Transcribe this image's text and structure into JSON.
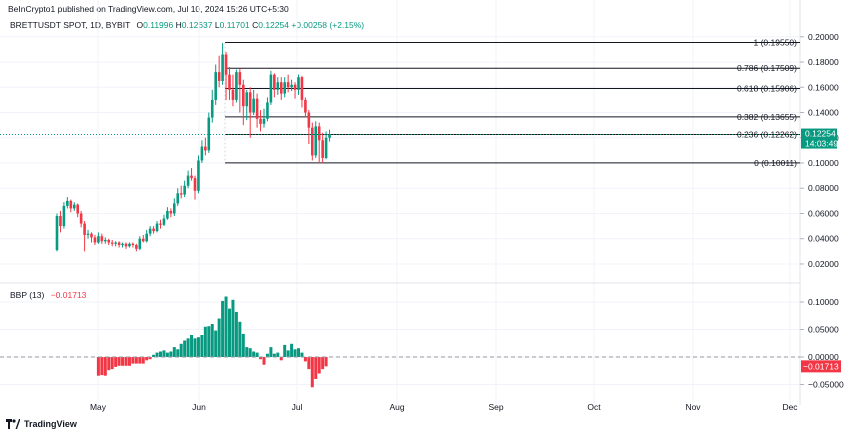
{
  "header": {
    "published": "BeInCrypto1 published on TradingView.com, Jul 10, 2024 15:26 UTC+5:30"
  },
  "main_legend": {
    "symbol": "BRETTUSDT SPOT, 1D, BYBIT",
    "o_label": "O",
    "o_value": "0.11996",
    "h_label": "H",
    "h_value": "0.12637",
    "l_label": "L",
    "l_value": "0.11701",
    "c_label": "C",
    "c_value": "0.12254",
    "change": "+0.00258 (+2.15%)"
  },
  "bbp_legend": {
    "name": "BBP (13)",
    "value": "−0.01713"
  },
  "price_badge": {
    "price": "0.12254",
    "countdown": "14:03:49"
  },
  "bbp_badge": {
    "value": "−0.01713"
  },
  "footer": {
    "brand": "TradingView"
  },
  "colors": {
    "up": "#089981",
    "down": "#f23645",
    "text": "#131722",
    "grid": "#f0f3fa"
  },
  "chart_data": [
    {
      "type": "candlestick",
      "title": "BRETTUSDT SPOT, 1D, BYBIT",
      "ylim": [
        0.0,
        0.21
      ],
      "y_ticks": [
        "0.20000",
        "0.18000",
        "0.16000",
        "0.14000",
        "0.12000",
        "0.10000",
        "0.08000",
        "0.06000",
        "0.04000",
        "0.02000"
      ],
      "y_tick_values": [
        0.2,
        0.18,
        0.16,
        0.14,
        0.12,
        0.1,
        0.08,
        0.06,
        0.04,
        0.02
      ],
      "x_ticks": [
        "May",
        "Jun",
        "Jul",
        "Aug",
        "Sep",
        "Oct",
        "Nov",
        "Dec"
      ],
      "last_price": 0.12254,
      "fibonacci": [
        {
          "level": "1",
          "price": 0.1955,
          "label": "1 (0.19550)"
        },
        {
          "level": "0.786",
          "price": 0.17509,
          "label": "0.786 (0.17509)"
        },
        {
          "level": "0.618",
          "price": 0.15906,
          "label": "0.618 (0.15906)"
        },
        {
          "level": "0.382",
          "price": 0.13655,
          "label": "0.382 (0.13655)"
        },
        {
          "level": "0.236",
          "price": 0.12262,
          "label": "0.236 (0.12262)"
        },
        {
          "level": "0",
          "price": 0.10011,
          "label": "0 (0.10011)"
        }
      ],
      "candles": [
        [
          0.031,
          0.058,
          0.06,
          0.03
        ],
        [
          0.058,
          0.05,
          0.062,
          0.045
        ],
        [
          0.05,
          0.066,
          0.069,
          0.048
        ],
        [
          0.066,
          0.07,
          0.073,
          0.064
        ],
        [
          0.07,
          0.064,
          0.071,
          0.061
        ],
        [
          0.064,
          0.067,
          0.069,
          0.062
        ],
        [
          0.067,
          0.06,
          0.068,
          0.057
        ],
        [
          0.06,
          0.052,
          0.062,
          0.049
        ],
        [
          0.052,
          0.043,
          0.054,
          0.03
        ],
        [
          0.043,
          0.044,
          0.047,
          0.04
        ],
        [
          0.044,
          0.041,
          0.045,
          0.037
        ],
        [
          0.041,
          0.037,
          0.043,
          0.035
        ],
        [
          0.037,
          0.042,
          0.045,
          0.036
        ],
        [
          0.042,
          0.038,
          0.044,
          0.036
        ],
        [
          0.038,
          0.039,
          0.041,
          0.036
        ],
        [
          0.039,
          0.037,
          0.04,
          0.035
        ],
        [
          0.037,
          0.036,
          0.039,
          0.034
        ],
        [
          0.036,
          0.037,
          0.038,
          0.034
        ],
        [
          0.037,
          0.035,
          0.038,
          0.033
        ],
        [
          0.035,
          0.036,
          0.037,
          0.033
        ],
        [
          0.036,
          0.034,
          0.037,
          0.032
        ],
        [
          0.034,
          0.036,
          0.037,
          0.033
        ],
        [
          0.036,
          0.035,
          0.037,
          0.033
        ],
        [
          0.035,
          0.032,
          0.036,
          0.03
        ],
        [
          0.032,
          0.04,
          0.042,
          0.031
        ],
        [
          0.04,
          0.038,
          0.043,
          0.037
        ],
        [
          0.038,
          0.044,
          0.047,
          0.037
        ],
        [
          0.044,
          0.048,
          0.05,
          0.042
        ],
        [
          0.048,
          0.046,
          0.05,
          0.044
        ],
        [
          0.046,
          0.052,
          0.054,
          0.045
        ],
        [
          0.052,
          0.051,
          0.055,
          0.048
        ],
        [
          0.051,
          0.056,
          0.059,
          0.05
        ],
        [
          0.056,
          0.062,
          0.065,
          0.055
        ],
        [
          0.062,
          0.06,
          0.064,
          0.057
        ],
        [
          0.06,
          0.068,
          0.072,
          0.058
        ],
        [
          0.068,
          0.076,
          0.08,
          0.066
        ],
        [
          0.076,
          0.075,
          0.082,
          0.072
        ],
        [
          0.075,
          0.082,
          0.086,
          0.073
        ],
        [
          0.082,
          0.09,
          0.094,
          0.08
        ],
        [
          0.09,
          0.088,
          0.096,
          0.086
        ],
        [
          0.088,
          0.078,
          0.09,
          0.071
        ],
        [
          0.078,
          0.102,
          0.106,
          0.076
        ],
        [
          0.102,
          0.113,
          0.118,
          0.1
        ],
        [
          0.113,
          0.11,
          0.12,
          0.106
        ],
        [
          0.11,
          0.136,
          0.14,
          0.108
        ],
        [
          0.136,
          0.15,
          0.158,
          0.132
        ],
        [
          0.15,
          0.172,
          0.178,
          0.146
        ],
        [
          0.172,
          0.165,
          0.185,
          0.16
        ],
        [
          0.165,
          0.186,
          0.195,
          0.162
        ],
        [
          0.186,
          0.17,
          0.188,
          0.15
        ],
        [
          0.17,
          0.158,
          0.176,
          0.15
        ],
        [
          0.158,
          0.15,
          0.17,
          0.145
        ],
        [
          0.15,
          0.172,
          0.174,
          0.148
        ],
        [
          0.172,
          0.162,
          0.175,
          0.14
        ],
        [
          0.162,
          0.145,
          0.166,
          0.13
        ],
        [
          0.145,
          0.156,
          0.158,
          0.134
        ],
        [
          0.156,
          0.14,
          0.16,
          0.12
        ],
        [
          0.14,
          0.151,
          0.158,
          0.138
        ],
        [
          0.151,
          0.135,
          0.155,
          0.128
        ],
        [
          0.135,
          0.131,
          0.142,
          0.125
        ],
        [
          0.131,
          0.135,
          0.143,
          0.128
        ],
        [
          0.135,
          0.148,
          0.152,
          0.133
        ],
        [
          0.148,
          0.17,
          0.173,
          0.146
        ],
        [
          0.17,
          0.158,
          0.171,
          0.152
        ],
        [
          0.158,
          0.164,
          0.168,
          0.154
        ],
        [
          0.164,
          0.155,
          0.168,
          0.15
        ],
        [
          0.155,
          0.164,
          0.168,
          0.152
        ],
        [
          0.164,
          0.16,
          0.17,
          0.156
        ],
        [
          0.16,
          0.162,
          0.166,
          0.157
        ],
        [
          0.162,
          0.158,
          0.164,
          0.151
        ],
        [
          0.158,
          0.168,
          0.17,
          0.154
        ],
        [
          0.168,
          0.15,
          0.169,
          0.144
        ],
        [
          0.15,
          0.14,
          0.152,
          0.136
        ],
        [
          0.14,
          0.128,
          0.142,
          0.115
        ],
        [
          0.128,
          0.106,
          0.132,
          0.102
        ],
        [
          0.106,
          0.129,
          0.133,
          0.104
        ],
        [
          0.129,
          0.118,
          0.132,
          0.1
        ],
        [
          0.118,
          0.104,
          0.124,
          0.1
        ],
        [
          0.104,
          0.12,
          0.125,
          0.103
        ],
        [
          0.11996,
          0.12254,
          0.12637,
          0.11701
        ]
      ]
    },
    {
      "type": "bar",
      "title": "BBP (13)",
      "ylim": [
        -0.065,
        0.115
      ],
      "y_ticks": [
        "0.10000",
        "0.05000",
        "0.00000",
        "−0.05000"
      ],
      "y_tick_values": [
        0.1,
        0.05,
        0.0,
        -0.05
      ],
      "values": [
        null,
        null,
        null,
        null,
        null,
        null,
        null,
        null,
        null,
        null,
        null,
        null,
        -0.034,
        -0.033,
        -0.034,
        -0.024,
        -0.022,
        -0.018,
        -0.016,
        -0.016,
        -0.016,
        -0.016,
        -0.012,
        -0.012,
        -0.012,
        -0.012,
        -0.006,
        -0.004,
        0.004,
        0.008,
        0.01,
        0.012,
        0.008,
        0.01,
        0.018,
        0.014,
        0.024,
        0.03,
        0.034,
        0.04,
        0.034,
        0.036,
        0.04,
        0.055,
        0.056,
        0.06,
        0.048,
        0.07,
        0.102,
        0.11,
        0.088,
        0.104,
        0.082,
        0.064,
        0.042,
        0.018,
        0.016,
        0.01,
        0.008,
        -0.004,
        -0.014,
        0.006,
        0.018,
        0.006,
        0.008,
        -0.006,
        0.022,
        0.012,
        0.024,
        0.014,
        0.016,
        0.008,
        -0.008,
        -0.022,
        -0.055,
        -0.04,
        -0.03,
        -0.022,
        -0.017
      ]
    }
  ]
}
